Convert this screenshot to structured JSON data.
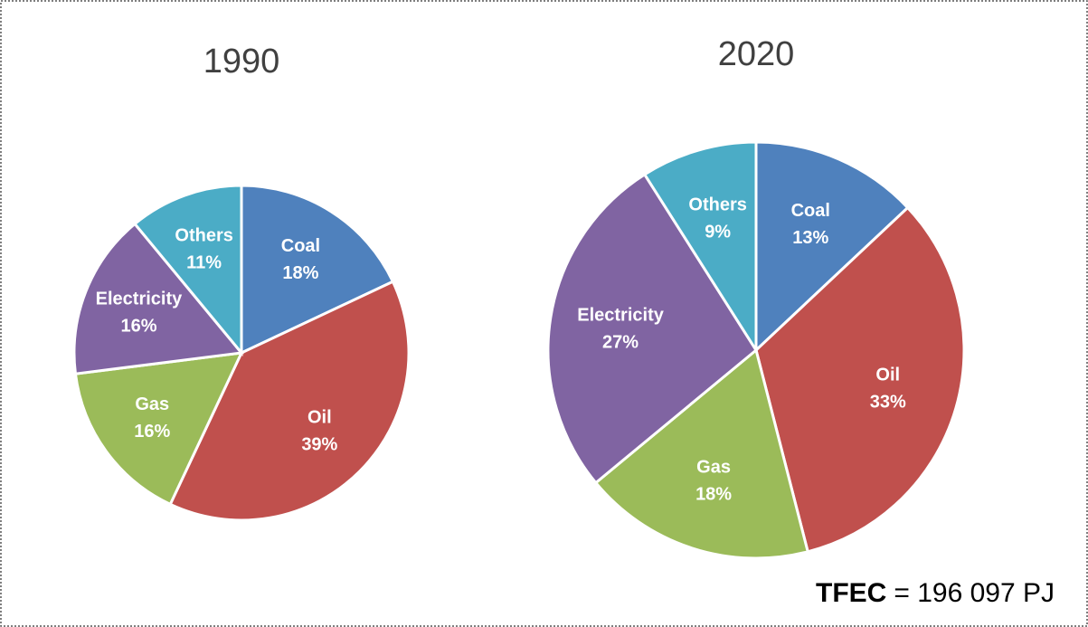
{
  "chart_data": [
    {
      "type": "pie",
      "title": "1990",
      "categories": [
        "Coal",
        "Oil",
        "Gas",
        "Electricity",
        "Others"
      ],
      "values": [
        18,
        39,
        16,
        16,
        11
      ],
      "value_labels": [
        "18%",
        "39%",
        "16%",
        "16%",
        "11%"
      ],
      "colors": [
        "#4f81bd",
        "#c0504d",
        "#9bbb59",
        "#8064a2",
        "#4bacc6"
      ]
    },
    {
      "type": "pie",
      "title": "2020",
      "categories": [
        "Coal",
        "Oil",
        "Gas",
        "Electricity",
        "Others"
      ],
      "values": [
        13,
        33,
        18,
        27,
        9
      ],
      "value_labels": [
        "13%",
        "33%",
        "18%",
        "27%",
        "9%"
      ],
      "colors": [
        "#4f81bd",
        "#c0504d",
        "#9bbb59",
        "#8064a2",
        "#4bacc6"
      ]
    }
  ],
  "footnote": {
    "label": "TFEC",
    "text": "= 196 097 PJ"
  }
}
